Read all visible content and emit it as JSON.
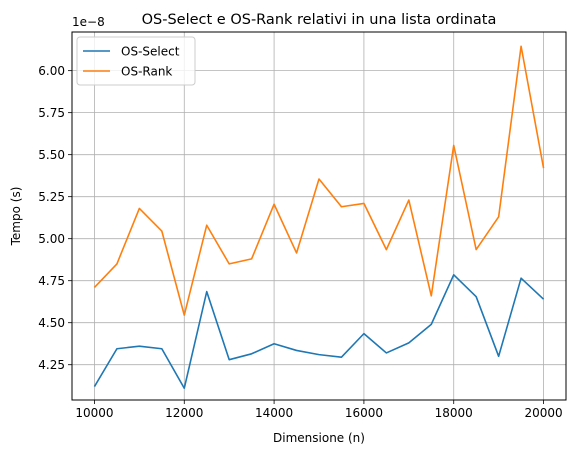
{
  "chart_data": {
    "type": "line",
    "title": "OS-Select e OS-Rank relativi in una lista ordinata",
    "xlabel": "Dimensione (n)",
    "ylabel": "Tempo (s)",
    "y_offset_label": "1e−8",
    "xlim": [
      9500,
      20500
    ],
    "ylim": [
      4.04,
      6.23
    ],
    "grid": true,
    "legend_position": "top-left",
    "x_ticks": [
      10000,
      12000,
      14000,
      16000,
      18000,
      20000
    ],
    "y_ticks": [
      4.25,
      4.5,
      4.75,
      5.0,
      5.25,
      5.5,
      5.75,
      6.0
    ],
    "x_tick_labels": [
      "10000",
      "12000",
      "14000",
      "16000",
      "18000",
      "20000"
    ],
    "y_tick_labels": [
      "4.25",
      "4.50",
      "4.75",
      "5.00",
      "5.25",
      "5.50",
      "5.75",
      "6.00"
    ],
    "x": [
      10000,
      10500,
      11000,
      11500,
      12000,
      12500,
      13000,
      13500,
      14000,
      14500,
      15000,
      15500,
      16000,
      16500,
      17000,
      17500,
      18000,
      18500,
      19000,
      19500,
      20000
    ],
    "series": [
      {
        "name": "OS-Select",
        "color": "#1f77b4",
        "values": [
          4.12,
          4.345,
          4.36,
          4.345,
          4.11,
          4.685,
          4.28,
          4.315,
          4.375,
          4.335,
          4.31,
          4.295,
          4.435,
          4.32,
          4.38,
          4.49,
          4.785,
          4.655,
          4.3,
          4.765,
          4.64
        ]
      },
      {
        "name": "OS-Rank",
        "color": "#ff7f0e",
        "values": [
          4.71,
          4.85,
          5.18,
          5.045,
          4.545,
          5.08,
          4.85,
          4.88,
          5.205,
          4.915,
          5.355,
          5.19,
          5.21,
          4.935,
          5.23,
          4.66,
          5.555,
          4.935,
          5.13,
          6.145,
          5.42
        ]
      }
    ]
  }
}
